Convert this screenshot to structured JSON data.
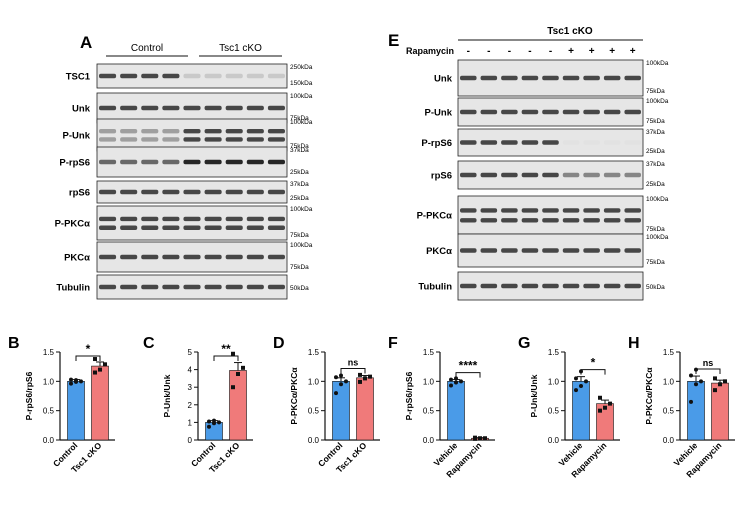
{
  "panelA": {
    "letter": "A",
    "groups": [
      "Control",
      "Tsc1 cKO"
    ],
    "rows": [
      {
        "label": "TSC1",
        "markers": [
          "250kDa",
          "150kDa"
        ]
      },
      {
        "label": "Unk",
        "markers": [
          "100kDa",
          "75kDa"
        ]
      },
      {
        "label": "P-Unk",
        "markers": [
          "100kDa",
          "75kDa"
        ]
      },
      {
        "label": "P-rpS6",
        "markers": [
          "37kDa",
          "25kDa"
        ]
      },
      {
        "label": "rpS6",
        "markers": [
          "37kDa",
          "25kDa"
        ]
      },
      {
        "label": "P-PKCα",
        "markers": [
          "100kDa",
          "75kDa"
        ]
      },
      {
        "label": "PKCα",
        "markers": [
          "100kDa",
          "75kDa"
        ]
      },
      {
        "label": "Tubulin",
        "markers": [
          "50kDa"
        ]
      }
    ]
  },
  "panelE": {
    "letter": "E",
    "header": "Tsc1 cKO",
    "treatment_label": "Rapamycin",
    "treatment_signs": [
      "-",
      "-",
      "-",
      "-",
      "-",
      "+",
      "+",
      "+",
      "+"
    ],
    "rows": [
      {
        "label": "Unk",
        "markers": [
          "100kDa",
          "75kDa"
        ]
      },
      {
        "label": "P-Unk",
        "markers": [
          "100kDa",
          "75kDa"
        ]
      },
      {
        "label": "P-rpS6",
        "markers": [
          "37kDa",
          "25kDa"
        ]
      },
      {
        "label": "rpS6",
        "markers": [
          "37kDa",
          "25kDa"
        ]
      },
      {
        "label": "P-PKCα",
        "markers": [
          "100kDa",
          "75kDa"
        ]
      },
      {
        "label": "PKCα",
        "markers": [
          "100kDa",
          "75kDa"
        ]
      },
      {
        "label": "Tubulin",
        "markers": [
          "50kDa"
        ]
      }
    ]
  },
  "colors": {
    "blue": "#4a9be8",
    "red": "#f07a7a",
    "ink": "#111111"
  },
  "chart_data": [
    {
      "panel": "B",
      "type": "bar",
      "ylabel": "P-rpS6/rpS6",
      "categories": [
        "Control",
        "Tsc1 cKO"
      ],
      "values": [
        1.0,
        1.26
      ],
      "errors": [
        0.03,
        0.07
      ],
      "ylim": [
        0,
        1.5
      ],
      "yticks": [
        0.0,
        0.5,
        1.0,
        1.5
      ],
      "significance": "*",
      "points": [
        [
          0.96,
          0.99,
          1.0,
          1.03,
          1.02
        ],
        [
          1.15,
          1.2,
          1.29,
          1.38
        ]
      ]
    },
    {
      "panel": "C",
      "type": "bar",
      "ylabel": "P-Unk/Unk",
      "categories": [
        "Control",
        "Tsc1 cKO"
      ],
      "values": [
        1.0,
        3.95
      ],
      "errors": [
        0.1,
        0.45
      ],
      "ylim": [
        0,
        5
      ],
      "yticks": [
        0,
        1,
        2,
        3,
        4,
        5
      ],
      "significance": "**",
      "points": [
        [
          0.75,
          0.95,
          1.0,
          1.05,
          1.1
        ],
        [
          3.0,
          3.75,
          4.1,
          4.9
        ]
      ]
    },
    {
      "panel": "D",
      "type": "bar",
      "ylabel": "P-PKCα/PKCα",
      "categories": [
        "Control",
        "Tsc1 cKO"
      ],
      "values": [
        1.0,
        1.06
      ],
      "errors": [
        0.06,
        0.04
      ],
      "ylim": [
        0,
        1.5
      ],
      "yticks": [
        0.0,
        0.5,
        1.0,
        1.5
      ],
      "significance": "ns",
      "points": [
        [
          0.8,
          0.95,
          1.0,
          1.07,
          1.1
        ],
        [
          0.99,
          1.05,
          1.08,
          1.11
        ]
      ]
    },
    {
      "panel": "F",
      "type": "bar",
      "ylabel": "P-rpS6/rpS6",
      "categories": [
        "Vehicle",
        "Rapamycin"
      ],
      "values": [
        1.0,
        0.03
      ],
      "errors": [
        0.03,
        0.01
      ],
      "ylim": [
        0,
        1.5
      ],
      "yticks": [
        0.0,
        0.5,
        1.0,
        1.5
      ],
      "significance": "****",
      "points": [
        [
          0.93,
          0.98,
          1.0,
          1.03,
          1.05
        ],
        [
          0.02,
          0.03,
          0.03,
          0.04
        ]
      ]
    },
    {
      "panel": "G",
      "type": "bar",
      "ylabel": "P-Unk/Unk",
      "categories": [
        "Vehicle",
        "Rapamycin"
      ],
      "values": [
        1.0,
        0.62
      ],
      "errors": [
        0.08,
        0.06
      ],
      "ylim": [
        0,
        1.5
      ],
      "yticks": [
        0.0,
        0.5,
        1.0,
        1.5
      ],
      "significance": "*",
      "points": [
        [
          0.85,
          0.92,
          1.0,
          1.05,
          1.17
        ],
        [
          0.5,
          0.55,
          0.62,
          0.72
        ]
      ]
    },
    {
      "panel": "H",
      "type": "bar",
      "ylabel": "P-PKCα/PKCα",
      "categories": [
        "Vehicle",
        "Rapamycin"
      ],
      "values": [
        1.0,
        0.97
      ],
      "errors": [
        0.09,
        0.05
      ],
      "ylim": [
        0,
        1.5
      ],
      "yticks": [
        0.0,
        0.5,
        1.0,
        1.5
      ],
      "significance": "ns",
      "points": [
        [
          0.65,
          0.95,
          1.0,
          1.1,
          1.2
        ],
        [
          0.85,
          0.95,
          1.0,
          1.05
        ]
      ]
    }
  ]
}
